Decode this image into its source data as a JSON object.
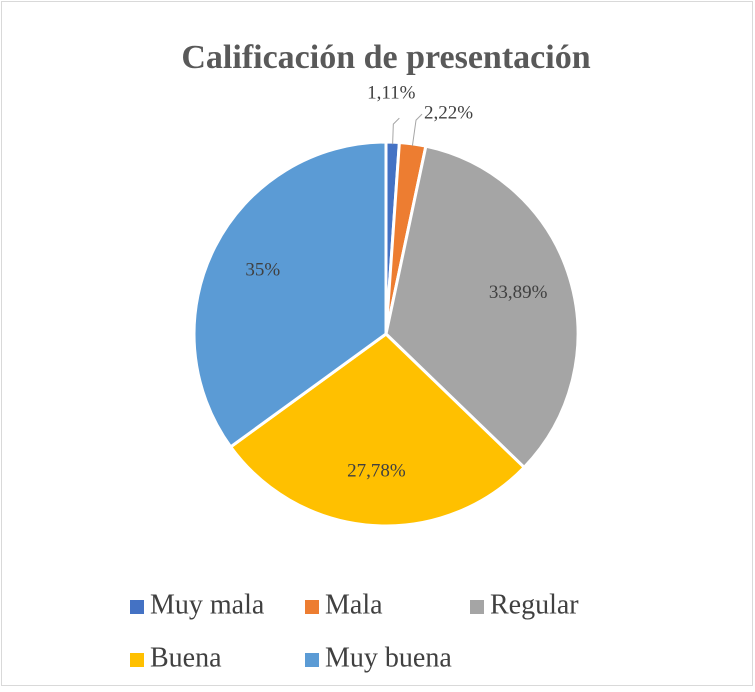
{
  "chart_data": {
    "type": "pie",
    "title": "Calificación de presentación",
    "categories": [
      "Muy mala",
      "Mala",
      "Regular",
      "Buena",
      "Muy buena"
    ],
    "values": [
      1.11,
      2.22,
      33.89,
      27.78,
      35
    ],
    "value_labels": [
      "1,11%",
      "2,22%",
      "33,89%",
      "27,78%",
      "35%"
    ],
    "colors": [
      "#4472c4",
      "#ed7d31",
      "#a5a5a5",
      "#ffc000",
      "#5b9bd5"
    ],
    "legend": "bottom"
  }
}
